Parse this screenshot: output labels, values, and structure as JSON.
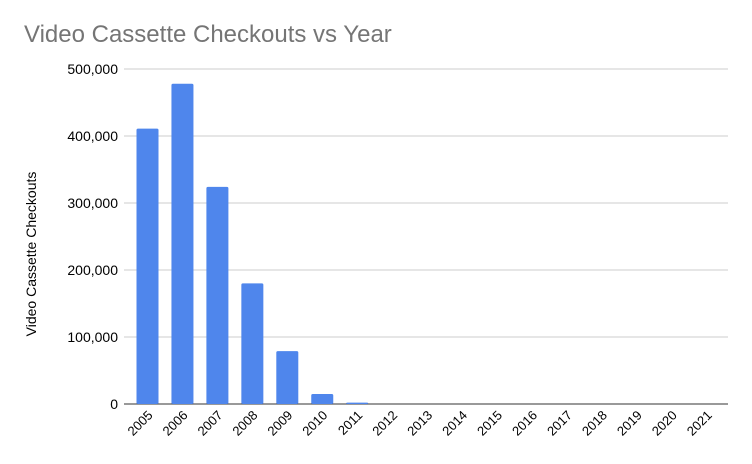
{
  "chart_data": {
    "type": "bar",
    "title": "Video Cassette Checkouts vs Year",
    "xlabel": "",
    "ylabel": "Video Cassette Checkouts",
    "categories": [
      "2005",
      "2006",
      "2007",
      "2008",
      "2009",
      "2010",
      "2011",
      "2012",
      "2013",
      "2014",
      "2015",
      "2016",
      "2017",
      "2018",
      "2019",
      "2020",
      "2021"
    ],
    "values": [
      411000,
      478000,
      324000,
      180000,
      79000,
      15000,
      2000,
      0,
      0,
      0,
      0,
      0,
      0,
      0,
      0,
      0,
      0
    ],
    "ylim": [
      0,
      500000
    ],
    "yticks": [
      "0",
      "100,000",
      "200,000",
      "300,000",
      "400,000",
      "500,000"
    ],
    "grid": true,
    "legend": "none",
    "bar_color": "#4f86ec",
    "title_color": "#757575",
    "grid_color": "#cccccc"
  }
}
